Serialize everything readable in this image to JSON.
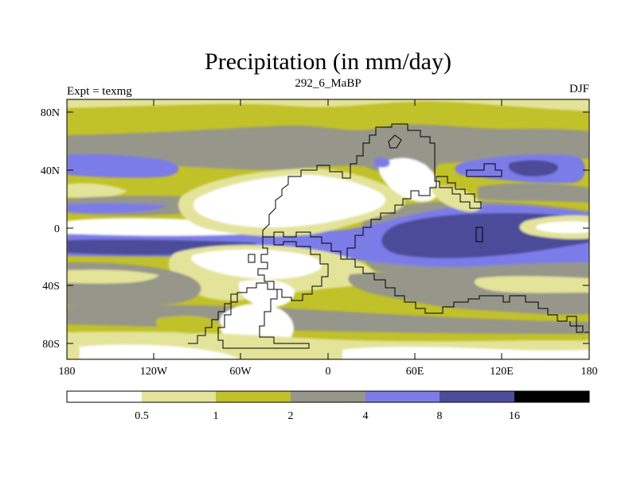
{
  "title": "Precipitation (in mm/day)",
  "left_label": "Expt = texmg",
  "center_label": "292_6_MaBP",
  "right_label": "DJF",
  "colors": {
    "white": "#ffffff",
    "pale": "#e3e39a",
    "olive": "#c1c12a",
    "gray": "#96968a",
    "blue": "#7c7ce8",
    "navy": "#4c4c9a",
    "black": "#000000",
    "coast": "#000000"
  },
  "chart_data": {
    "type": "map",
    "title": "Precipitation (in mm/day)",
    "lon_ticks": [
      "180",
      "120W",
      "60W",
      "0",
      "60E",
      "120E",
      "180"
    ],
    "lat_ticks": [
      "80N",
      "40N",
      "0",
      "40S",
      "80S"
    ],
    "colorbar": {
      "levels": [
        "0.5",
        "1",
        "2",
        "4",
        "8",
        "16"
      ],
      "bins": [
        "white",
        "pale",
        "olive",
        "gray",
        "blue",
        "navy",
        "black"
      ]
    }
  }
}
